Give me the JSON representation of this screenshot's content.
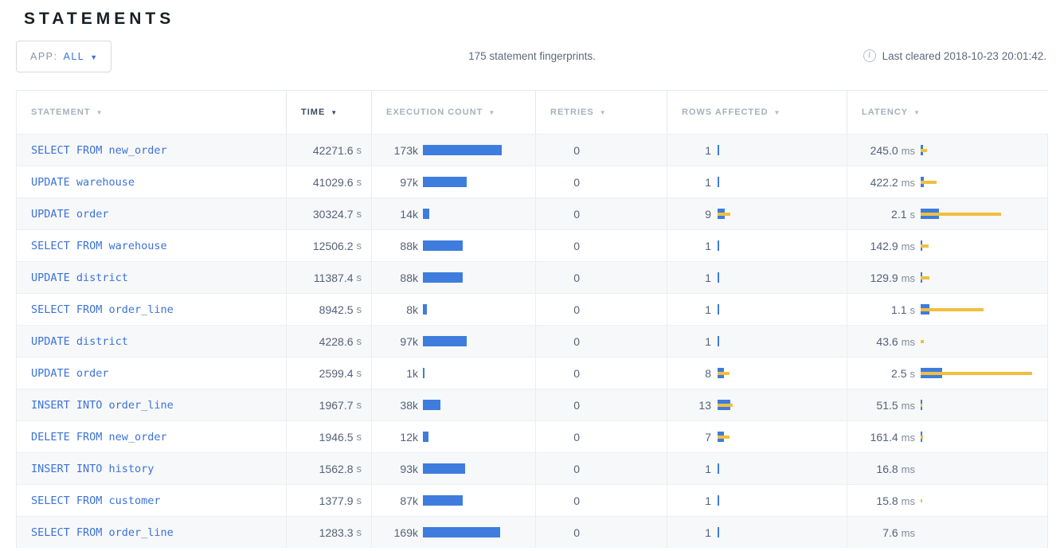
{
  "page": {
    "title": "STATEMENTS"
  },
  "toolbar": {
    "app_filter_label": "APP:",
    "app_filter_value": "ALL",
    "summary": "175 statement fingerprints.",
    "last_cleared": "Last cleared 2018-10-23 20:01:42."
  },
  "icons": {
    "sort_arrow": "▼",
    "dropdown_caret": "▼",
    "info": "i"
  },
  "colors": {
    "bar_blue": "#3e7cdd",
    "bar_yellow": "#f1bf3f",
    "link_blue": "#3b72d9",
    "stripe": "#f7f8f9"
  },
  "table": {
    "columns": [
      {
        "label": "STATEMENT",
        "sorted": false
      },
      {
        "label": "TIME",
        "sorted": true
      },
      {
        "label": "EXECUTION COUNT",
        "sorted": false
      },
      {
        "label": "RETRIES",
        "sorted": false
      },
      {
        "label": "ROWS AFFECTED",
        "sorted": false
      },
      {
        "label": "LATENCY",
        "sorted": false
      }
    ],
    "rows": [
      {
        "statement": "SELECT FROM new_order",
        "time": "42271.6",
        "time_unit": "s",
        "count": "173k",
        "count_bar": 99,
        "retries": "0",
        "rows_affected": "1",
        "rows_bar": 1.5,
        "rows_sd_bar": 0,
        "latency": "245.0",
        "latency_unit": "ms",
        "lat_bar": 3,
        "lat_sd_bar": 8
      },
      {
        "statement": "UPDATE warehouse",
        "time": "41029.6",
        "time_unit": "s",
        "count": "97k",
        "count_bar": 55,
        "retries": "0",
        "rows_affected": "1",
        "rows_bar": 1.5,
        "rows_sd_bar": 0,
        "latency": "422.2",
        "latency_unit": "ms",
        "lat_bar": 4,
        "lat_sd_bar": 20
      },
      {
        "statement": "UPDATE order",
        "time": "30324.7",
        "time_unit": "s",
        "count": "14k",
        "count_bar": 8,
        "retries": "0",
        "rows_affected": "9",
        "rows_bar": 9,
        "rows_sd_bar": 16,
        "latency": "2.1",
        "latency_unit": "s",
        "lat_bar": 23,
        "lat_sd_bar": 101
      },
      {
        "statement": "SELECT FROM warehouse",
        "time": "12506.2",
        "time_unit": "s",
        "count": "88k",
        "count_bar": 50,
        "retries": "0",
        "rows_affected": "1",
        "rows_bar": 1.5,
        "rows_sd_bar": 0,
        "latency": "142.9",
        "latency_unit": "ms",
        "lat_bar": 2,
        "lat_sd_bar": 10
      },
      {
        "statement": "UPDATE district",
        "time": "11387.4",
        "time_unit": "s",
        "count": "88k",
        "count_bar": 50,
        "retries": "0",
        "rows_affected": "1",
        "rows_bar": 1.5,
        "rows_sd_bar": 0,
        "latency": "129.9",
        "latency_unit": "ms",
        "lat_bar": 1.5,
        "lat_sd_bar": 11
      },
      {
        "statement": "SELECT FROM order_line",
        "time": "8942.5",
        "time_unit": "s",
        "count": "8k",
        "count_bar": 5,
        "retries": "0",
        "rows_affected": "1",
        "rows_bar": 1.5,
        "rows_sd_bar": 0,
        "latency": "1.1",
        "latency_unit": "s",
        "lat_bar": 11,
        "lat_sd_bar": 79
      },
      {
        "statement": "UPDATE district",
        "time": "4228.6",
        "time_unit": "s",
        "count": "97k",
        "count_bar": 55,
        "retries": "0",
        "rows_affected": "1",
        "rows_bar": 1.5,
        "rows_sd_bar": 0,
        "latency": "43.6",
        "latency_unit": "ms",
        "lat_bar": 0,
        "lat_sd_bar": 4
      },
      {
        "statement": "UPDATE order",
        "time": "2599.4",
        "time_unit": "s",
        "count": "1k",
        "count_bar": 1.5,
        "retries": "0",
        "rows_affected": "8",
        "rows_bar": 8,
        "rows_sd_bar": 15,
        "latency": "2.5",
        "latency_unit": "s",
        "lat_bar": 27,
        "lat_sd_bar": 140
      },
      {
        "statement": "INSERT INTO order_line",
        "time": "1967.7",
        "time_unit": "s",
        "count": "38k",
        "count_bar": 22,
        "retries": "0",
        "rows_affected": "13",
        "rows_bar": 16,
        "rows_sd_bar": 19,
        "latency": "51.5",
        "latency_unit": "ms",
        "lat_bar": 2,
        "lat_sd_bar": 2
      },
      {
        "statement": "DELETE FROM new_order",
        "time": "1946.5",
        "time_unit": "s",
        "count": "12k",
        "count_bar": 7,
        "retries": "0",
        "rows_affected": "7",
        "rows_bar": 8,
        "rows_sd_bar": 15,
        "latency": "161.4",
        "latency_unit": "ms",
        "lat_bar": 2,
        "lat_sd_bar": 3
      },
      {
        "statement": "INSERT INTO history",
        "time": "1562.8",
        "time_unit": "s",
        "count": "93k",
        "count_bar": 53,
        "retries": "0",
        "rows_affected": "1",
        "rows_bar": 1.5,
        "rows_sd_bar": 0,
        "latency": "16.8",
        "latency_unit": "ms",
        "lat_bar": 0,
        "lat_sd_bar": 0
      },
      {
        "statement": "SELECT FROM customer",
        "time": "1377.9",
        "time_unit": "s",
        "count": "87k",
        "count_bar": 50,
        "retries": "0",
        "rows_affected": "1",
        "rows_bar": 1.5,
        "rows_sd_bar": 0,
        "latency": "15.8",
        "latency_unit": "ms",
        "lat_bar": 0,
        "lat_sd_bar": 2
      },
      {
        "statement": "SELECT FROM order_line",
        "time": "1283.3",
        "time_unit": "s",
        "count": "169k",
        "count_bar": 97,
        "retries": "0",
        "rows_affected": "1",
        "rows_bar": 1.5,
        "rows_sd_bar": 0,
        "latency": "7.6",
        "latency_unit": "ms",
        "lat_bar": 0,
        "lat_sd_bar": 0
      }
    ]
  }
}
